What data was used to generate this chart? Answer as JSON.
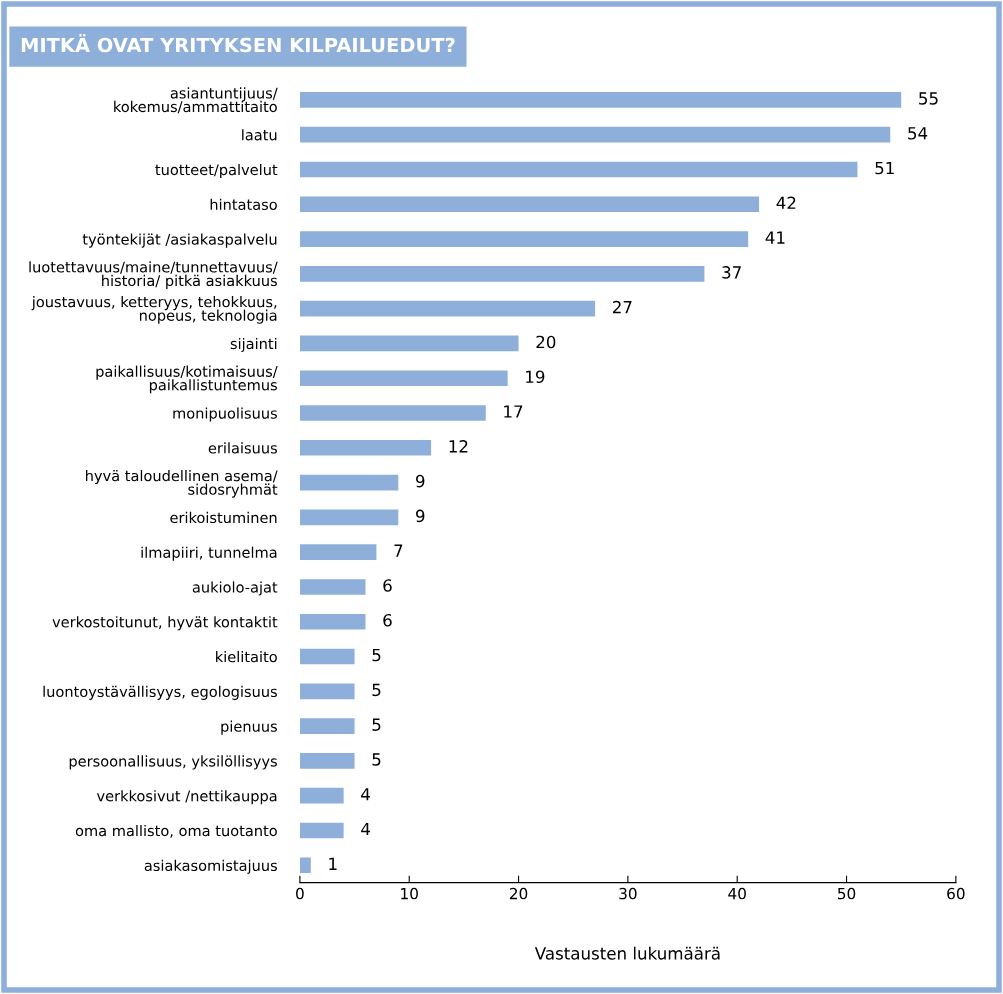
{
  "chart_data": {
    "type": "bar",
    "orientation": "horizontal",
    "title": "MITKÄ OVAT YRITYKSEN KILPAILUEDUT?",
    "xlabel": "Vastausten lukumäärä",
    "categories": [
      "asiantuntijuus/\nkokemus/ammattitaito",
      "laatu",
      "tuotteet/palvelut",
      "hintataso",
      "työntekijät /asiakaspalvelu",
      "luotettavuus/maine/tunnettavuus/\nhistoria/ pitkä asiakkuus",
      "joustavuus, ketteryys, tehokkuus,\nnopeus, teknologia",
      "sijainti",
      "paikallisuus/kotimaisuus/\npaikallistuntemus",
      "monipuolisuus",
      "erilaisuus",
      "hyvä taloudellinen asema/\nsidosryhmät",
      "erikoistuminen",
      "ilmapiiri, tunnelma",
      "aukiolo-ajat",
      "verkostoitunut, hyvät kontaktit",
      "kielitaito",
      "luontoystävällisyys, egologisuus",
      "pienuus",
      "persoonallisuus, yksilöllisyys",
      "verkkosivut /nettikauppa",
      "oma mallisto, oma tuotanto",
      "asiakasomistajuus"
    ],
    "values": [
      55,
      54,
      51,
      42,
      41,
      37,
      27,
      20,
      19,
      17,
      12,
      9,
      9,
      7,
      6,
      6,
      5,
      5,
      5,
      5,
      4,
      4,
      1
    ],
    "color": "#8dafd9",
    "xlim": [
      0,
      60
    ],
    "xticks": [
      0,
      10,
      20,
      30,
      40,
      50,
      60
    ],
    "data_labels": true,
    "grid": false,
    "legend": false
  }
}
